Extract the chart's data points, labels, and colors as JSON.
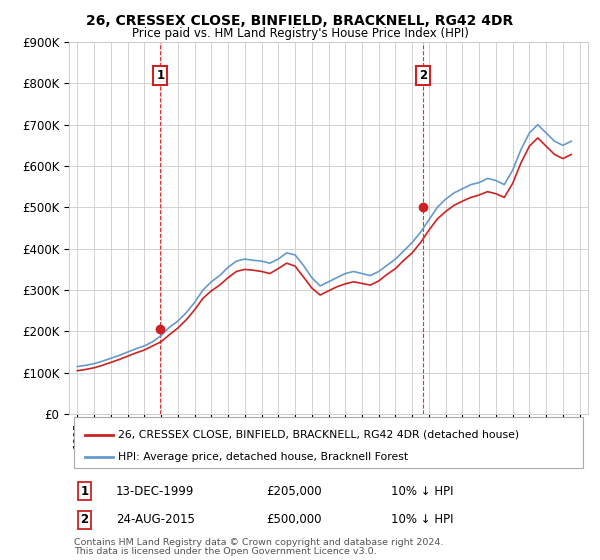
{
  "title": "26, CRESSEX CLOSE, BINFIELD, BRACKNELL, RG42 4DR",
  "subtitle": "Price paid vs. HM Land Registry's House Price Index (HPI)",
  "legend_line1": "26, CRESSEX CLOSE, BINFIELD, BRACKNELL, RG42 4DR (detached house)",
  "legend_line2": "HPI: Average price, detached house, Bracknell Forest",
  "transaction1_label": "1",
  "transaction1_date": "13-DEC-1999",
  "transaction1_price": "£205,000",
  "transaction1_info": "10% ↓ HPI",
  "transaction1_year": 1999.96,
  "transaction1_value": 205000,
  "transaction2_label": "2",
  "transaction2_date": "24-AUG-2015",
  "transaction2_price": "£500,000",
  "transaction2_info": "10% ↓ HPI",
  "transaction2_year": 2015.64,
  "transaction2_value": 500000,
  "footer_line1": "Contains HM Land Registry data © Crown copyright and database right 2024.",
  "footer_line2": "This data is licensed under the Open Government Licence v3.0.",
  "ylim": [
    0,
    900000
  ],
  "yticks": [
    0,
    100000,
    200000,
    300000,
    400000,
    500000,
    600000,
    700000,
    800000,
    900000
  ],
  "ytick_labels": [
    "£0",
    "£100K",
    "£200K",
    "£300K",
    "£400K",
    "£500K",
    "£600K",
    "£700K",
    "£800K",
    "£900K"
  ],
  "hpi_color": "#6699cc",
  "price_color": "#cc2222",
  "vline_color": "#cc2222",
  "bg_color": "#ffffff",
  "grid_color": "#cccccc",
  "box_color": "#cc2222",
  "years_hpi": [
    1995.0,
    1995.5,
    1996.0,
    1996.5,
    1997.0,
    1997.5,
    1998.0,
    1998.5,
    1999.0,
    1999.5,
    2000.0,
    2000.5,
    2001.0,
    2001.5,
    2002.0,
    2002.5,
    2003.0,
    2003.5,
    2004.0,
    2004.5,
    2005.0,
    2005.5,
    2006.0,
    2006.5,
    2007.0,
    2007.5,
    2008.0,
    2008.5,
    2009.0,
    2009.5,
    2010.0,
    2010.5,
    2011.0,
    2011.5,
    2012.0,
    2012.5,
    2013.0,
    2013.5,
    2014.0,
    2014.5,
    2015.0,
    2015.5,
    2016.0,
    2016.5,
    2017.0,
    2017.5,
    2018.0,
    2018.5,
    2019.0,
    2019.5,
    2020.0,
    2020.5,
    2021.0,
    2021.5,
    2022.0,
    2022.5,
    2023.0,
    2023.5,
    2024.0,
    2024.5
  ],
  "hpi_values": [
    115000,
    118000,
    122000,
    128000,
    135000,
    142000,
    150000,
    158000,
    165000,
    175000,
    190000,
    210000,
    225000,
    245000,
    270000,
    300000,
    320000,
    335000,
    355000,
    370000,
    375000,
    372000,
    370000,
    365000,
    375000,
    390000,
    385000,
    360000,
    330000,
    310000,
    320000,
    330000,
    340000,
    345000,
    340000,
    335000,
    345000,
    360000,
    375000,
    395000,
    415000,
    440000,
    470000,
    500000,
    520000,
    535000,
    545000,
    555000,
    560000,
    570000,
    565000,
    555000,
    590000,
    640000,
    680000,
    700000,
    680000,
    660000,
    650000,
    660000
  ],
  "price_years": [
    1995.0,
    1995.5,
    1996.0,
    1996.5,
    1997.0,
    1997.5,
    1998.0,
    1998.5,
    1999.0,
    1999.5,
    2000.0,
    2000.5,
    2001.0,
    2001.5,
    2002.0,
    2002.5,
    2003.0,
    2003.5,
    2004.0,
    2004.5,
    2005.0,
    2005.5,
    2006.0,
    2006.5,
    2007.0,
    2007.5,
    2008.0,
    2008.5,
    2009.0,
    2009.5,
    2010.0,
    2010.5,
    2011.0,
    2011.5,
    2012.0,
    2012.5,
    2013.0,
    2013.5,
    2014.0,
    2014.5,
    2015.0,
    2015.5,
    2016.0,
    2016.5,
    2017.0,
    2017.5,
    2018.0,
    2018.5,
    2019.0,
    2019.5,
    2020.0,
    2020.5,
    2021.0,
    2021.5,
    2022.0,
    2022.5,
    2023.0,
    2023.5,
    2024.0,
    2024.5
  ],
  "price_values": [
    105000,
    108000,
    112000,
    118000,
    125000,
    132000,
    140000,
    148000,
    155000,
    165000,
    175000,
    192000,
    208000,
    228000,
    252000,
    280000,
    298000,
    312000,
    330000,
    345000,
    350000,
    348000,
    345000,
    340000,
    352000,
    365000,
    358000,
    332000,
    305000,
    288000,
    298000,
    308000,
    315000,
    320000,
    316000,
    312000,
    322000,
    338000,
    352000,
    372000,
    390000,
    415000,
    445000,
    472000,
    490000,
    505000,
    515000,
    524000,
    530000,
    538000,
    533000,
    524000,
    558000,
    608000,
    648000,
    668000,
    648000,
    628000,
    618000,
    628000
  ]
}
